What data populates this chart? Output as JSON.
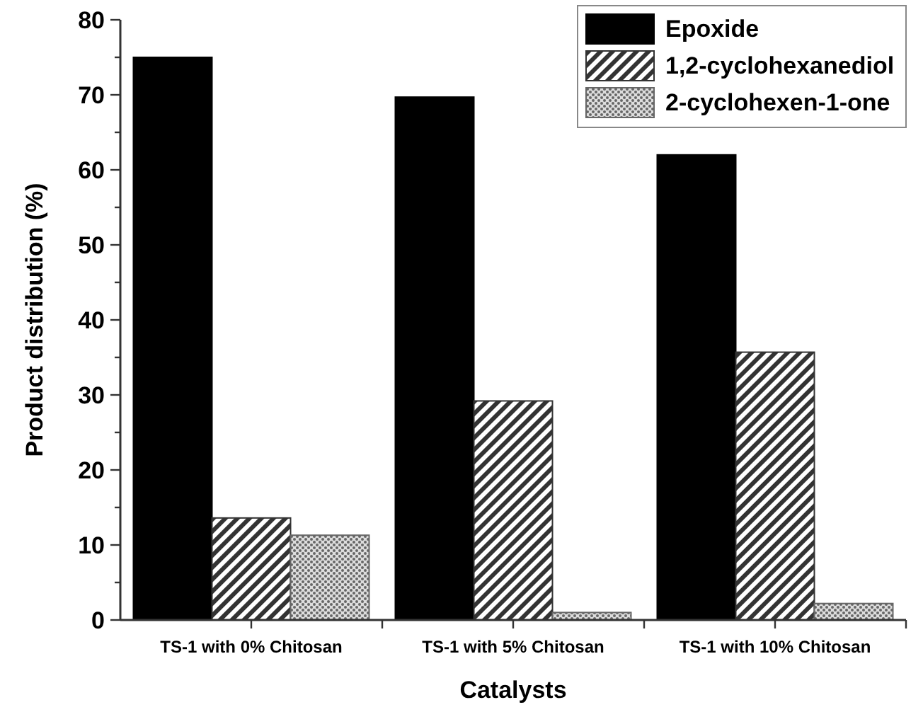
{
  "chart_data": {
    "type": "bar",
    "xlabel": "Catalysts",
    "ylabel": "Product distribution (%)",
    "categories": [
      "TS-1 with 0% Chitosan",
      "TS-1 with 5% Chitosan",
      "TS-1 with 10% Chitosan"
    ],
    "series": [
      {
        "name": "Epoxide",
        "color": "#000000",
        "values": [
          75,
          69.7,
          62
        ]
      },
      {
        "name": "1,2-cyclohexanediol",
        "color": "#333333",
        "values": [
          13.6,
          29.2,
          35.7
        ]
      },
      {
        "name": "2-cyclohexen-1-one",
        "color": "#666666",
        "values": [
          11.3,
          1,
          2.2
        ]
      }
    ],
    "ylim": [
      0,
      80
    ],
    "yticks": [
      0,
      {
        "value": 5,
        "label": null
      },
      10,
      {
        "value": 15,
        "label": null
      },
      20,
      {
        "value": 25,
        "label": null
      },
      30,
      {
        "value": 35,
        "label": null
      },
      40,
      {
        "value": 45,
        "label": null
      },
      50,
      {
        "value": 55,
        "label": null
      },
      60,
      {
        "value": 65,
        "label": null
      },
      70,
      {
        "value": 75,
        "label": null
      },
      80
    ],
    "legend": "top right",
    "grid": false
  }
}
